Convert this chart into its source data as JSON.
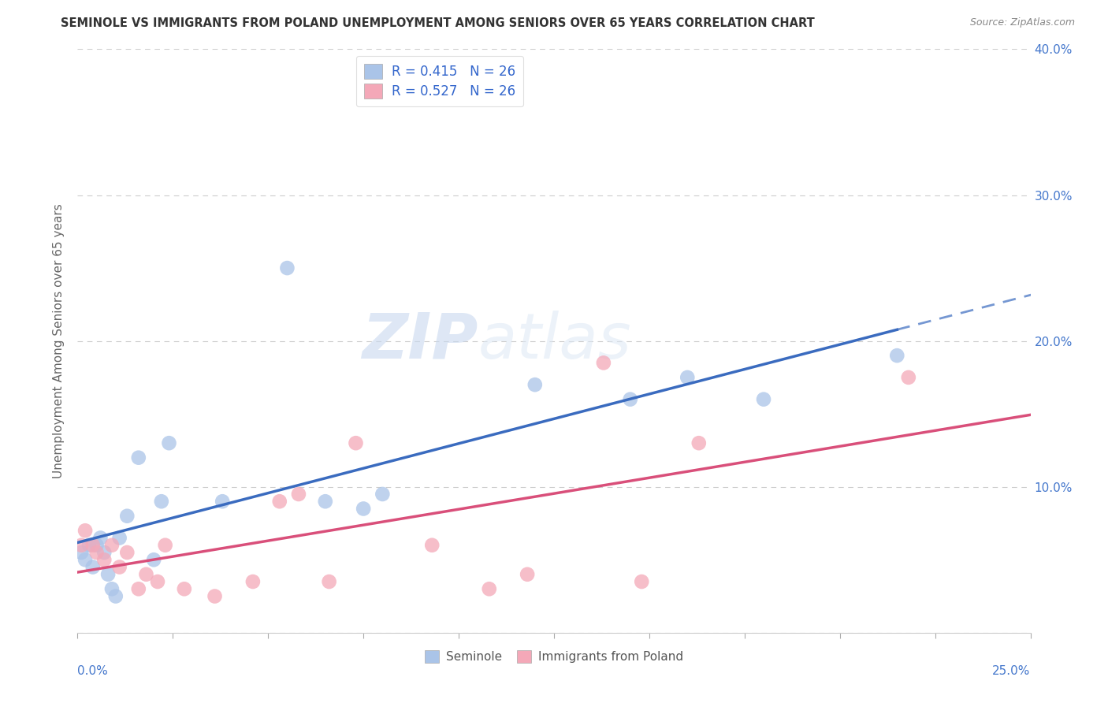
{
  "title": "SEMINOLE VS IMMIGRANTS FROM POLAND UNEMPLOYMENT AMONG SENIORS OVER 65 YEARS CORRELATION CHART",
  "source": "Source: ZipAtlas.com",
  "ylabel": "Unemployment Among Seniors over 65 years",
  "xlim": [
    0,
    0.25
  ],
  "ylim": [
    0,
    0.4
  ],
  "seminole_color": "#aac4e8",
  "poland_color": "#f4a8b8",
  "line_blue": "#3a6bbf",
  "line_pink": "#d94f7a",
  "legend_label_blue": "Seminole",
  "legend_label_pink": "Immigrants from Poland",
  "watermark_zip": "ZIP",
  "watermark_atlas": "atlas",
  "background_color": "#ffffff",
  "grid_color": "#cccccc",
  "seminole_x": [
    0.001,
    0.002,
    0.003,
    0.004,
    0.005,
    0.006,
    0.007,
    0.008,
    0.009,
    0.01,
    0.011,
    0.013,
    0.016,
    0.02,
    0.022,
    0.024,
    0.038,
    0.055,
    0.065,
    0.075,
    0.08,
    0.12,
    0.145,
    0.16,
    0.18,
    0.215
  ],
  "seminole_y": [
    0.055,
    0.05,
    0.06,
    0.045,
    0.06,
    0.065,
    0.055,
    0.04,
    0.03,
    0.025,
    0.065,
    0.08,
    0.12,
    0.05,
    0.09,
    0.13,
    0.09,
    0.25,
    0.09,
    0.085,
    0.095,
    0.17,
    0.16,
    0.175,
    0.16,
    0.19
  ],
  "poland_x": [
    0.001,
    0.002,
    0.004,
    0.005,
    0.007,
    0.009,
    0.011,
    0.013,
    0.016,
    0.018,
    0.021,
    0.023,
    0.028,
    0.036,
    0.046,
    0.053,
    0.058,
    0.066,
    0.073,
    0.093,
    0.108,
    0.118,
    0.138,
    0.148,
    0.163,
    0.218
  ],
  "poland_y": [
    0.06,
    0.07,
    0.06,
    0.055,
    0.05,
    0.06,
    0.045,
    0.055,
    0.03,
    0.04,
    0.035,
    0.06,
    0.03,
    0.025,
    0.035,
    0.09,
    0.095,
    0.035,
    0.13,
    0.06,
    0.03,
    0.04,
    0.185,
    0.035,
    0.13,
    0.175
  ],
  "r_blue": 0.415,
  "n_blue": 26,
  "r_pink": 0.527,
  "n_pink": 26
}
